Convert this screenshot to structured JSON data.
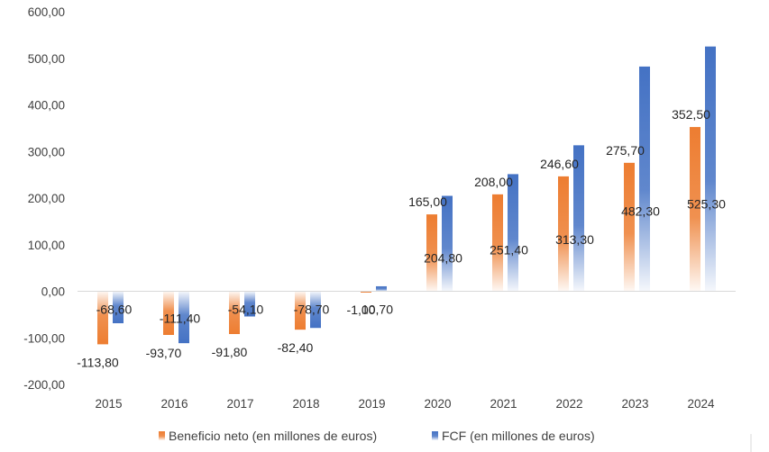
{
  "chart_data": {
    "type": "bar",
    "categories": [
      "2015",
      "2016",
      "2017",
      "2018",
      "2019",
      "2020",
      "2021",
      "2022",
      "2023",
      "2024"
    ],
    "series": [
      {
        "name": "Beneficio neto (en millones de euros)",
        "color": "#ED7D31",
        "values": [
          -113.8,
          -93.7,
          -91.8,
          -82.4,
          -1.0,
          165.0,
          208.0,
          246.6,
          275.7,
          352.5
        ],
        "labels": [
          "-113,80",
          "-93,70",
          "-91,80",
          "-82,40",
          "-1,00",
          "165,00",
          "208,00",
          "246,60",
          "275,70",
          "352,50"
        ]
      },
      {
        "name": "FCF (en millones de euros)",
        "color": "#4472C4",
        "values": [
          -68.6,
          -111.4,
          -54.1,
          -78.7,
          10.7,
          204.8,
          251.4,
          313.3,
          482.3,
          525.3
        ],
        "labels": [
          "-68,60",
          "-111,40",
          "-54,10",
          "-78,70",
          "10,70",
          "204,80",
          "251,40",
          "313,30",
          "482,30",
          "525,30"
        ]
      }
    ],
    "yticks": [
      "600,00",
      "500,00",
      "400,00",
      "300,00",
      "200,00",
      "100,00",
      "0,00",
      "-100,00",
      "-200,00"
    ],
    "ylim": [
      -200,
      600
    ],
    "title": "",
    "xlabel": "",
    "ylabel": "",
    "grid": false,
    "legend": "bottom"
  }
}
